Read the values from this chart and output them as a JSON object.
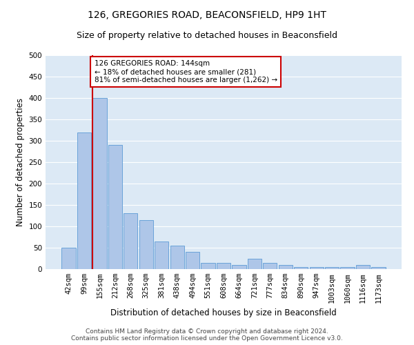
{
  "title": "126, GREGORIES ROAD, BEACONSFIELD, HP9 1HT",
  "subtitle": "Size of property relative to detached houses in Beaconsfield",
  "xlabel": "Distribution of detached houses by size in Beaconsfield",
  "ylabel": "Number of detached properties",
  "categories": [
    "42sqm",
    "99sqm",
    "155sqm",
    "212sqm",
    "268sqm",
    "325sqm",
    "381sqm",
    "438sqm",
    "494sqm",
    "551sqm",
    "608sqm",
    "664sqm",
    "721sqm",
    "777sqm",
    "834sqm",
    "890sqm",
    "947sqm",
    "1003sqm",
    "1060sqm",
    "1116sqm",
    "1173sqm"
  ],
  "values": [
    50,
    320,
    400,
    290,
    130,
    115,
    65,
    55,
    40,
    15,
    15,
    10,
    25,
    15,
    10,
    5,
    5,
    5,
    5,
    10,
    5
  ],
  "bar_color": "#aec6e8",
  "bar_edge_color": "#5b9bd5",
  "background_color": "#dce9f5",
  "annotation_box_color": "#ffffff",
  "annotation_border_color": "#cc0000",
  "vline_color": "#cc0000",
  "vline_x_index": 2,
  "annotation_text_line1": "126 GREGORIES ROAD: 144sqm",
  "annotation_text_line2": "← 18% of detached houses are smaller (281)",
  "annotation_text_line3": "81% of semi-detached houses are larger (1,262) →",
  "footer_line1": "Contains HM Land Registry data © Crown copyright and database right 2024.",
  "footer_line2": "Contains public sector information licensed under the Open Government Licence v3.0.",
  "ylim": [
    0,
    500
  ],
  "yticks": [
    0,
    50,
    100,
    150,
    200,
    250,
    300,
    350,
    400,
    450,
    500
  ],
  "title_fontsize": 10,
  "subtitle_fontsize": 9,
  "axis_label_fontsize": 8.5,
  "tick_fontsize": 7.5,
  "annotation_fontsize": 7.5,
  "footer_fontsize": 6.5
}
